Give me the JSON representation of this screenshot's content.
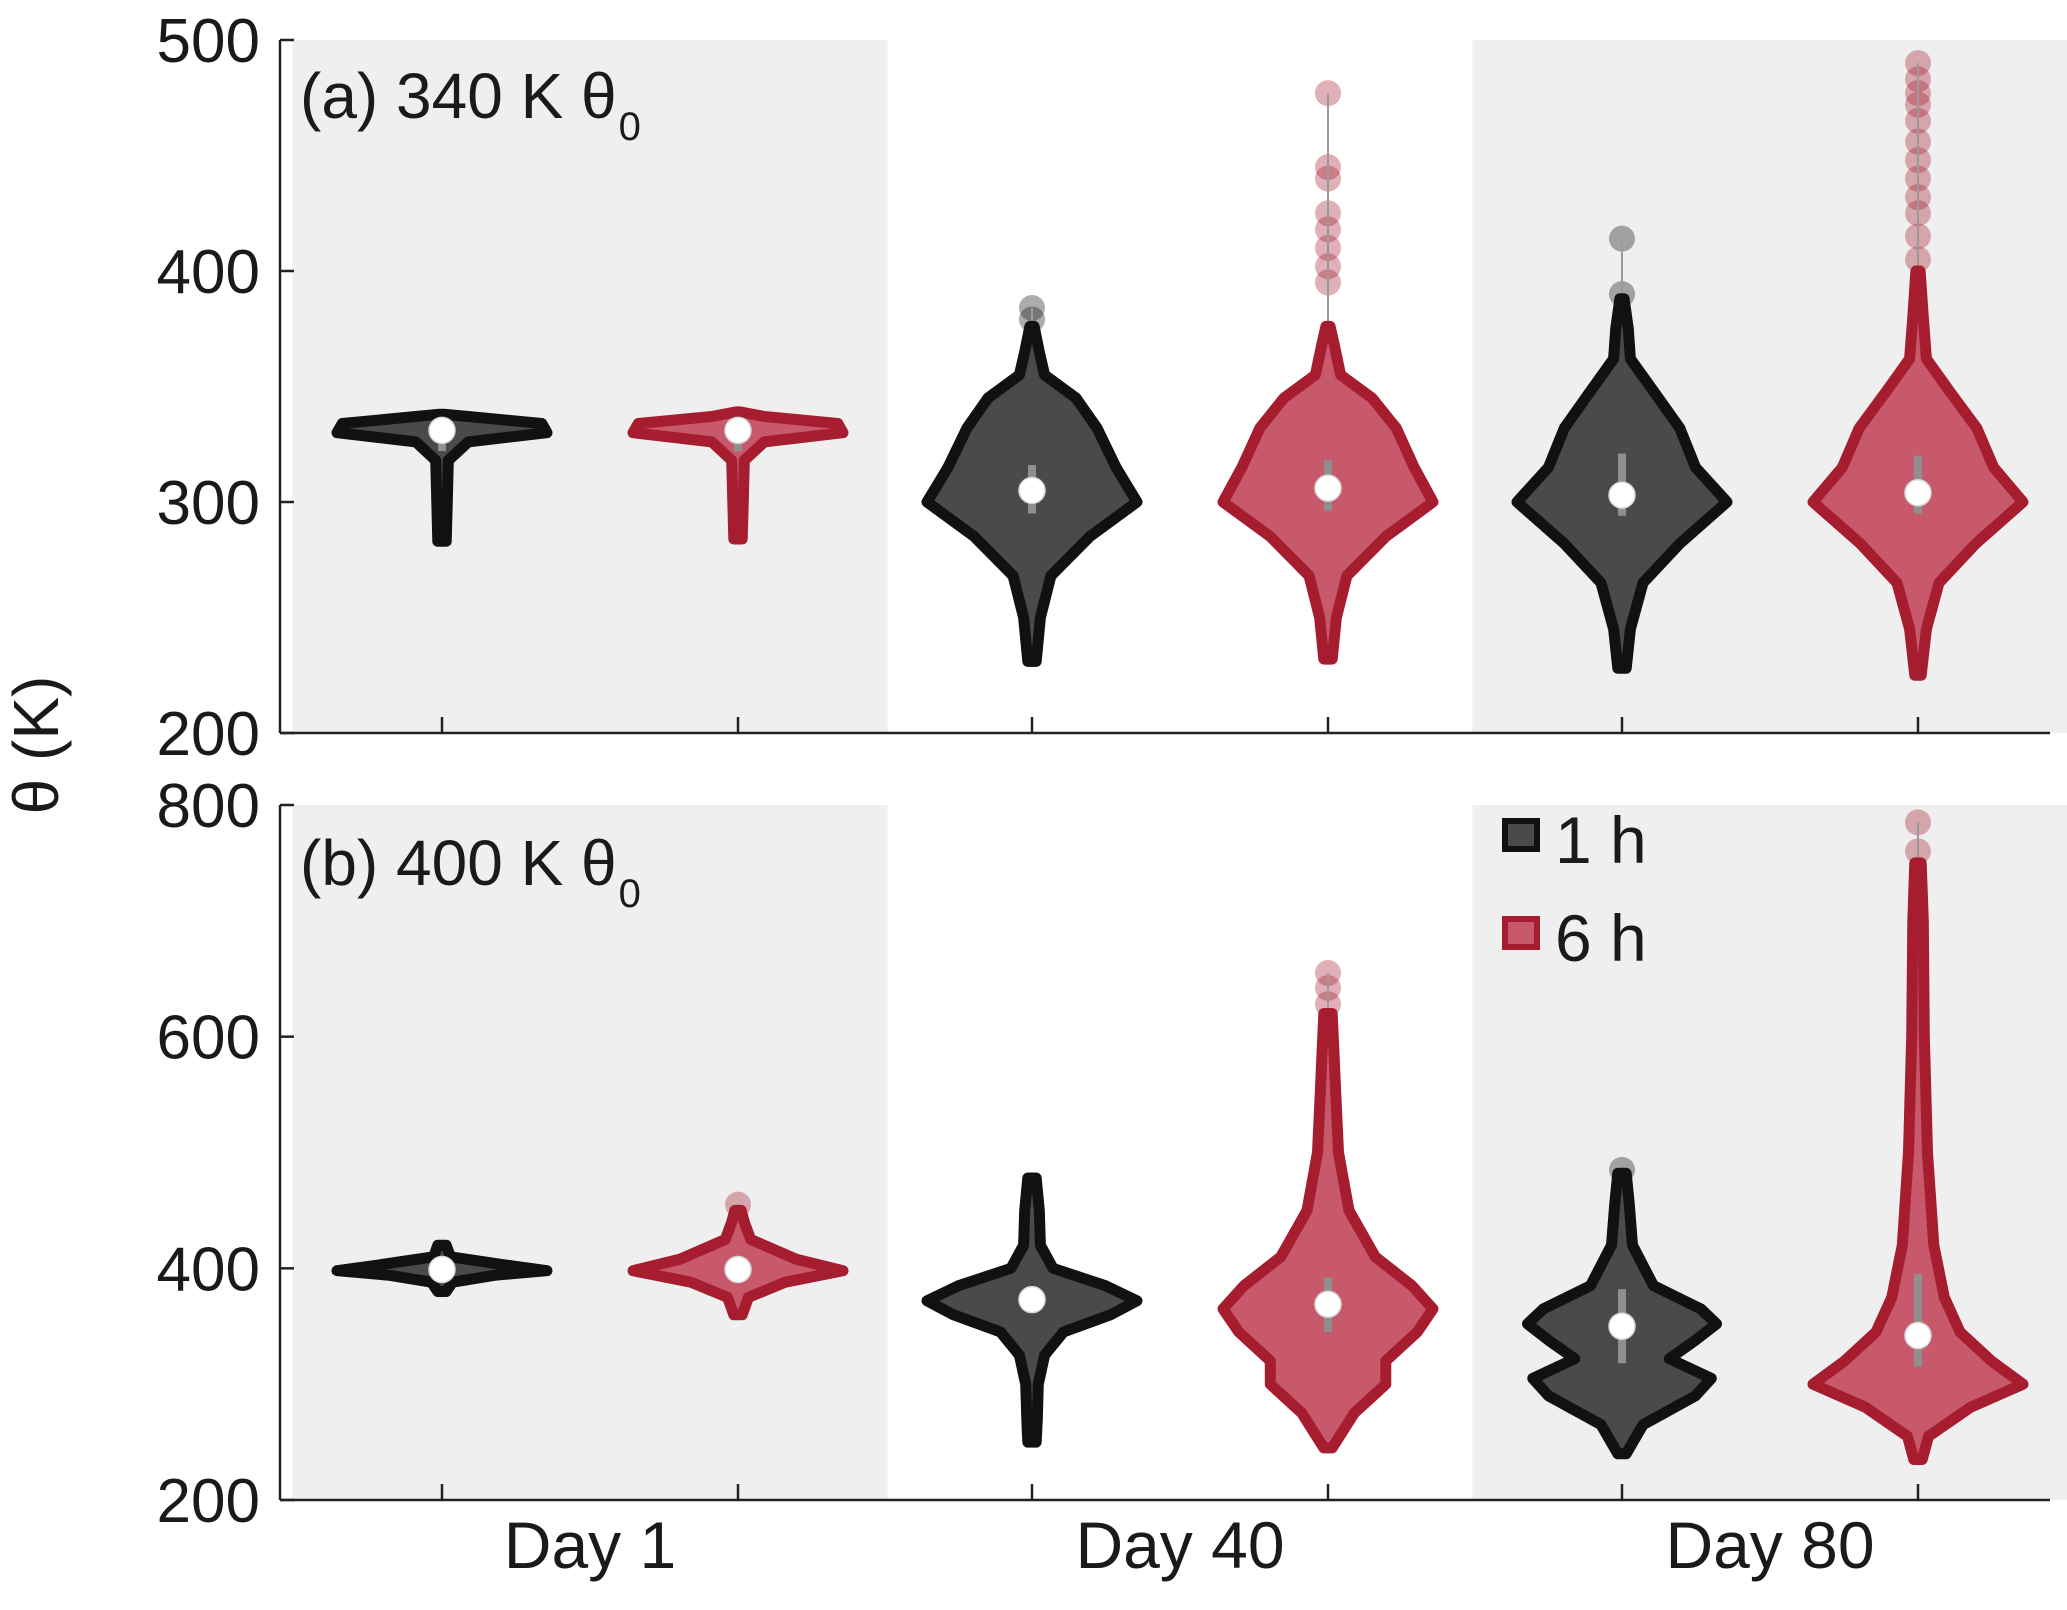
{
  "figure": {
    "ylabel": "θ (K)",
    "groups": [
      "Day 1",
      "Day 40",
      "Day 80"
    ],
    "legend": [
      {
        "label": "1 h",
        "color": "#4a4a4a",
        "edge": "#111111"
      },
      {
        "label": "6 h",
        "color": "#c8596a",
        "edge": "#a61d30"
      }
    ]
  },
  "colors": {
    "band_shade": "#efefef",
    "series_1h_fill": "#4a4a4a",
    "series_1h_edge": "#111111",
    "series_6h_fill": "#c8596a",
    "series_6h_edge": "#a61d30",
    "median_marker": "#ffffff",
    "whisker": "#9a9a9a"
  },
  "chart_data": [
    {
      "type": "violin",
      "panel_label": "(a) 340 K θ",
      "panel_label_sub": "0",
      "categories": [
        "Day 1",
        "Day 40",
        "Day 80"
      ],
      "yticks": [
        200,
        300,
        400,
        500
      ],
      "ylim": [
        200,
        500
      ],
      "shaded_categories": [
        "Day 1",
        "Day 80"
      ],
      "series": [
        {
          "name": "1 h",
          "violins": [
            {
              "category": "Day 1",
              "median": 331,
              "q1": 322,
              "q3": 333,
              "min": 283,
              "max": 338,
              "profile": [
                [
                  283,
                  0.04
                ],
                [
                  300,
                  0.05
                ],
                [
                  318,
                  0.06
                ],
                [
                  326,
                  0.25
                ],
                [
                  330,
                  1.0
                ],
                [
                  334,
                  0.95
                ],
                [
                  337,
                  0.25
                ],
                [
                  338,
                  0.02
                ]
              ],
              "outliers": []
            },
            {
              "category": "Day 40",
              "median": 305,
              "q1": 295,
              "q3": 316,
              "min": 231,
              "max": 376,
              "profile": [
                [
                  231,
                  0.04
                ],
                [
                  250,
                  0.08
                ],
                [
                  268,
                  0.18
                ],
                [
                  285,
                  0.55
                ],
                [
                  300,
                  1.0
                ],
                [
                  315,
                  0.8
                ],
                [
                  332,
                  0.62
                ],
                [
                  345,
                  0.42
                ],
                [
                  355,
                  0.12
                ],
                [
                  365,
                  0.07
                ],
                [
                  376,
                  0.02
                ]
              ],
              "outliers": [
                379,
                384
              ]
            },
            {
              "category": "Day 80",
              "median": 303,
              "q1": 294,
              "q3": 321,
              "min": 228,
              "max": 388,
              "profile": [
                [
                  228,
                  0.04
                ],
                [
                  245,
                  0.08
                ],
                [
                  265,
                  0.2
                ],
                [
                  282,
                  0.55
                ],
                [
                  300,
                  1.0
                ],
                [
                  315,
                  0.7
                ],
                [
                  332,
                  0.55
                ],
                [
                  348,
                  0.3
                ],
                [
                  362,
                  0.08
                ],
                [
                  375,
                  0.06
                ],
                [
                  388,
                  0.02
                ]
              ],
              "outliers": [
                390,
                414
              ]
            }
          ]
        },
        {
          "name": "6 h",
          "violins": [
            {
              "category": "Day 1",
              "median": 331,
              "q1": 322,
              "q3": 333,
              "min": 284,
              "max": 339,
              "profile": [
                [
                  284,
                  0.04
                ],
                [
                  300,
                  0.05
                ],
                [
                  318,
                  0.06
                ],
                [
                  326,
                  0.25
                ],
                [
                  330,
                  1.0
                ],
                [
                  334,
                  0.95
                ],
                [
                  337,
                  0.25
                ],
                [
                  339,
                  0.02
                ]
              ],
              "outliers": []
            },
            {
              "category": "Day 40",
              "median": 306,
              "q1": 296,
              "q3": 318,
              "min": 232,
              "max": 376,
              "profile": [
                [
                  232,
                  0.04
                ],
                [
                  250,
                  0.08
                ],
                [
                  268,
                  0.18
                ],
                [
                  285,
                  0.55
                ],
                [
                  300,
                  1.0
                ],
                [
                  315,
                  0.82
                ],
                [
                  332,
                  0.65
                ],
                [
                  345,
                  0.42
                ],
                [
                  355,
                  0.12
                ],
                [
                  368,
                  0.06
                ],
                [
                  376,
                  0.02
                ]
              ],
              "outliers": [
                395,
                402,
                410,
                418,
                425,
                440,
                445,
                477
              ]
            },
            {
              "category": "Day 80",
              "median": 304,
              "q1": 295,
              "q3": 320,
              "min": 225,
              "max": 400,
              "profile": [
                [
                  225,
                  0.03
                ],
                [
                  245,
                  0.08
                ],
                [
                  265,
                  0.2
                ],
                [
                  282,
                  0.55
                ],
                [
                  300,
                  1.0
                ],
                [
                  315,
                  0.72
                ],
                [
                  332,
                  0.56
                ],
                [
                  348,
                  0.3
                ],
                [
                  362,
                  0.08
                ],
                [
                  380,
                  0.05
                ],
                [
                  400,
                  0.02
                ]
              ],
              "outliers": [
                405,
                415,
                425,
                432,
                440,
                448,
                456,
                465,
                472,
                477,
                483,
                490
              ]
            }
          ]
        }
      ]
    },
    {
      "type": "violin",
      "panel_label": "(b) 400 K θ",
      "panel_label_sub": "0",
      "categories": [
        "Day 1",
        "Day 40",
        "Day 80"
      ],
      "yticks": [
        200,
        400,
        600,
        800
      ],
      "ylim": [
        200,
        800
      ],
      "shaded_categories": [
        "Day 1",
        "Day 80"
      ],
      "series": [
        {
          "name": "1 h",
          "violins": [
            {
              "category": "Day 1",
              "median": 399,
              "q1": 395,
              "q3": 402,
              "min": 380,
              "max": 420,
              "profile": [
                [
                  380,
                  0.04
                ],
                [
                  388,
                  0.1
                ],
                [
                  394,
                  0.5
                ],
                [
                  398,
                  1.0
                ],
                [
                  403,
                  0.6
                ],
                [
                  410,
                  0.08
                ],
                [
                  420,
                  0.04
                ]
              ],
              "outliers": []
            },
            {
              "category": "Day 40",
              "median": 373,
              "q1": 362,
              "q3": 382,
              "min": 250,
              "max": 478,
              "profile": [
                [
                  250,
                  0.04
                ],
                [
                  270,
                  0.05
                ],
                [
                  300,
                  0.06
                ],
                [
                  325,
                  0.12
                ],
                [
                  345,
                  0.3
                ],
                [
                  360,
                  0.75
                ],
                [
                  372,
                  1.0
                ],
                [
                  385,
                  0.7
                ],
                [
                  400,
                  0.2
                ],
                [
                  420,
                  0.08
                ],
                [
                  450,
                  0.07
                ],
                [
                  478,
                  0.04
                ]
              ],
              "outliers": []
            },
            {
              "category": "Day 80",
              "median": 350,
              "q1": 318,
              "q3": 382,
              "min": 240,
              "max": 482,
              "profile": [
                [
                  240,
                  0.04
                ],
                [
                  265,
                  0.2
                ],
                [
                  290,
                  0.7
                ],
                [
                  305,
                  0.85
                ],
                [
                  322,
                  0.45
                ],
                [
                  338,
                  0.7
                ],
                [
                  352,
                  0.9
                ],
                [
                  365,
                  0.75
                ],
                [
                  385,
                  0.3
                ],
                [
                  420,
                  0.1
                ],
                [
                  455,
                  0.07
                ],
                [
                  482,
                  0.04
                ]
              ],
              "outliers": [
                485
              ]
            }
          ]
        },
        {
          "name": "6 h",
          "violins": [
            {
              "category": "Day 1",
              "median": 399,
              "q1": 392,
              "q3": 405,
              "min": 360,
              "max": 450,
              "profile": [
                [
                  360,
                  0.04
                ],
                [
                  375,
                  0.1
                ],
                [
                  388,
                  0.45
                ],
                [
                  398,
                  1.0
                ],
                [
                  408,
                  0.55
                ],
                [
                  425,
                  0.12
                ],
                [
                  440,
                  0.06
                ],
                [
                  450,
                  0.03
                ]
              ],
              "outliers": [
                455
              ]
            },
            {
              "category": "Day 40",
              "median": 369,
              "q1": 345,
              "q3": 392,
              "min": 245,
              "max": 620,
              "profile": [
                [
                  245,
                  0.04
                ],
                [
                  275,
                  0.25
                ],
                [
                  300,
                  0.55
                ],
                [
                  320,
                  0.55
                ],
                [
                  345,
                  0.85
                ],
                [
                  365,
                  1.0
                ],
                [
                  385,
                  0.8
                ],
                [
                  410,
                  0.45
                ],
                [
                  450,
                  0.2
                ],
                [
                  500,
                  0.1
                ],
                [
                  560,
                  0.07
                ],
                [
                  620,
                  0.04
                ]
              ],
              "outliers": [
                628,
                642,
                655
              ]
            },
            {
              "category": "Day 80",
              "median": 342,
              "q1": 315,
              "q3": 395,
              "min": 235,
              "max": 750,
              "profile": [
                [
                  235,
                  0.04
                ],
                [
                  255,
                  0.1
                ],
                [
                  280,
                  0.5
                ],
                [
                  300,
                  1.0
                ],
                [
                  320,
                  0.7
                ],
                [
                  345,
                  0.4
                ],
                [
                  375,
                  0.25
                ],
                [
                  420,
                  0.15
                ],
                [
                  500,
                  0.09
                ],
                [
                  600,
                  0.06
                ],
                [
                  700,
                  0.05
                ],
                [
                  750,
                  0.03
                ]
              ],
              "outliers": [
                760,
                785
              ]
            }
          ]
        }
      ]
    }
  ]
}
